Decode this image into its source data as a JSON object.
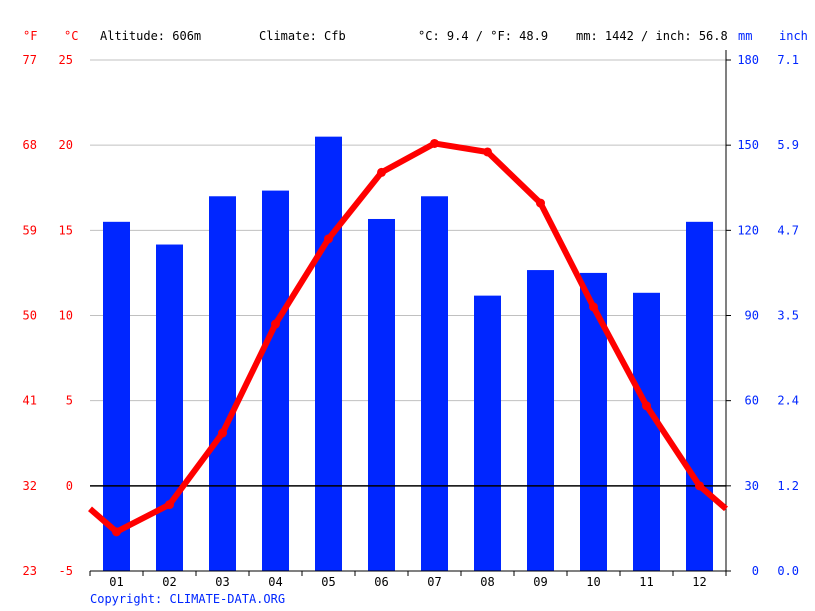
{
  "header": {
    "f_unit": "°F",
    "c_unit": "°C",
    "altitude": "Altitude: 606m",
    "climate": "Climate: Cfb",
    "temp_avg": "°C: 9.4 / °F: 48.9",
    "precip_total": "mm: 1442 / inch: 56.8",
    "mm_unit": "mm",
    "inch_unit": "inch"
  },
  "copyright": "Copyright: CLIMATE-DATA.ORG",
  "colors": {
    "temperature": "#ff0000",
    "precipitation": "#0026ff"
  },
  "chart_data": {
    "type": "bar+line",
    "categories": [
      "01",
      "02",
      "03",
      "04",
      "05",
      "06",
      "07",
      "08",
      "09",
      "10",
      "11",
      "12"
    ],
    "series": [
      {
        "kind": "bar",
        "unit": "mm",
        "values": [
          123,
          115,
          132,
          134,
          153,
          124,
          132,
          97,
          106,
          105,
          98,
          123
        ]
      },
      {
        "kind": "line",
        "unit": "°C",
        "values": [
          -2.7,
          -1.1,
          3.1,
          9.5,
          14.5,
          18.4,
          20.1,
          19.6,
          16.6,
          10.5,
          4.7,
          0.0
        ]
      }
    ],
    "left_axis_c": {
      "ticks": [
        "25",
        "20",
        "15",
        "10",
        "5",
        "0",
        "-5"
      ],
      "range": [
        -5,
        25
      ]
    },
    "left_axis_f": {
      "ticks": [
        "77",
        "68",
        "59",
        "50",
        "41",
        "32",
        "23"
      ]
    },
    "right_axis_mm": {
      "ticks": [
        "180",
        "150",
        "120",
        "90",
        "60",
        "30",
        "0"
      ],
      "range": [
        0,
        180
      ]
    },
    "right_axis_inch": {
      "ticks": [
        "7.1",
        "5.9",
        "4.7",
        "3.5",
        "2.4",
        "1.2",
        "0.0"
      ]
    },
    "grid": true
  }
}
